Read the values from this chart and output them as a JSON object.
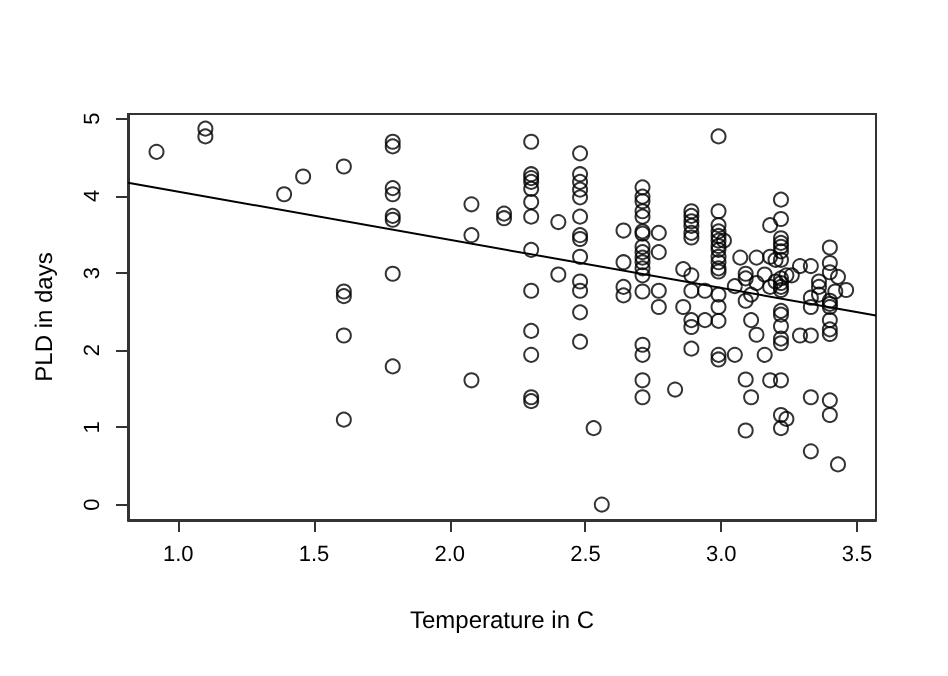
{
  "chart_data": {
    "type": "scatter",
    "xlabel": "Temperature in C",
    "ylabel": "PLD in days",
    "xlim": [
      0.815,
      3.57
    ],
    "ylim": [
      -0.2,
      5.06
    ],
    "xticks": [
      {
        "value": 1,
        "label": "1.0"
      },
      {
        "value": 1.5,
        "label": "1.5"
      },
      {
        "value": 2,
        "label": "2.0"
      },
      {
        "value": 2.5,
        "label": "2.5"
      },
      {
        "value": 3,
        "label": "3.0"
      },
      {
        "value": 3.5,
        "label": "3.5"
      }
    ],
    "yticks": [
      0,
      1,
      2,
      3,
      4,
      5
    ],
    "grid": false,
    "series": [
      {
        "color": "#000000",
        "marker": "circle",
        "x": [
          0.92,
          1.1,
          1.1,
          1.39,
          1.46,
          1.61,
          1.61,
          1.61,
          1.61,
          1.61,
          1.79,
          1.79,
          1.79,
          1.79,
          1.79,
          1.79,
          1.79,
          1.79,
          2.08,
          2.08,
          2.08,
          2.2,
          2.2,
          2.3,
          2.3,
          2.3,
          2.3,
          2.3,
          2.3,
          2.3,
          2.3,
          2.3,
          2.3,
          2.3,
          2.3,
          2.3,
          2.4,
          2.4,
          2.48,
          2.48,
          2.48,
          2.48,
          2.48,
          2.48,
          2.48,
          2.48,
          2.48,
          2.48,
          2.48,
          2.48,
          2.48,
          2.53,
          2.56,
          2.64,
          2.64,
          2.64,
          2.64,
          2.71,
          2.71,
          2.71,
          2.71,
          2.71,
          2.71,
          2.71,
          2.71,
          2.71,
          2.71,
          2.71,
          2.71,
          2.71,
          2.71,
          2.71,
          2.71,
          2.71,
          2.71,
          2.77,
          2.77,
          2.77,
          2.77,
          2.83,
          2.86,
          2.86,
          2.89,
          2.89,
          2.89,
          2.89,
          2.89,
          2.89,
          2.89,
          2.89,
          2.89,
          2.89,
          2.89,
          2.94,
          2.94,
          2.99,
          2.99,
          2.99,
          2.99,
          2.99,
          2.99,
          2.99,
          2.99,
          2.99,
          2.99,
          2.99,
          2.99,
          2.99,
          2.99,
          2.99,
          2.99,
          2.99,
          3.01,
          3.05,
          3.05,
          3.07,
          3.09,
          3.09,
          3.09,
          3.09,
          3.09,
          3.11,
          3.11,
          3.11,
          3.13,
          3.13,
          3.13,
          3.16,
          3.16,
          3.18,
          3.18,
          3.18,
          3.18,
          3.2,
          3.2,
          3.22,
          3.22,
          3.22,
          3.22,
          3.22,
          3.22,
          3.22,
          3.22,
          3.22,
          3.22,
          3.22,
          3.22,
          3.22,
          3.22,
          3.22,
          3.22,
          3.22,
          3.22,
          3.22,
          3.24,
          3.24,
          3.26,
          3.29,
          3.29,
          3.33,
          3.33,
          3.33,
          3.33,
          3.33,
          3.33,
          3.36,
          3.36,
          3.36,
          3.4,
          3.4,
          3.4,
          3.4,
          3.4,
          3.4,
          3.4,
          3.4,
          3.4,
          3.4,
          3.4,
          3.42,
          3.43,
          3.43,
          3.46
        ],
        "values": [
          4.57,
          4.87,
          4.77,
          4.02,
          4.25,
          4.38,
          2.76,
          2.7,
          2.19,
          1.1,
          4.7,
          4.64,
          4.1,
          4.02,
          3.74,
          3.69,
          2.99,
          1.79,
          3.89,
          3.49,
          1.61,
          3.77,
          3.71,
          4.7,
          4.28,
          4.23,
          4.18,
          4.09,
          3.92,
          3.73,
          3.3,
          2.77,
          2.25,
          1.94,
          1.39,
          1.34,
          3.66,
          2.98,
          4.55,
          4.28,
          4.18,
          4.08,
          3.98,
          3.73,
          3.49,
          3.44,
          3.21,
          2.89,
          2.77,
          2.49,
          2.11,
          0.99,
          0.0,
          3.55,
          3.14,
          2.82,
          2.71,
          4.11,
          3.99,
          3.93,
          3.8,
          3.73,
          3.54,
          3.51,
          3.34,
          3.27,
          3.2,
          3.14,
          3.06,
          2.97,
          2.76,
          2.07,
          1.94,
          1.61,
          1.39,
          3.52,
          3.27,
          2.77,
          2.56,
          1.49,
          3.05,
          2.56,
          3.8,
          3.74,
          3.67,
          3.61,
          3.52,
          3.46,
          2.97,
          2.77,
          2.39,
          2.3,
          2.02,
          2.77,
          2.39,
          4.77,
          3.8,
          3.62,
          3.54,
          3.48,
          3.42,
          3.35,
          3.3,
          3.21,
          3.14,
          3.06,
          3.02,
          2.72,
          2.56,
          2.38,
          1.94,
          1.88,
          3.42,
          2.83,
          1.94,
          3.2,
          2.99,
          2.93,
          2.64,
          1.62,
          0.96,
          2.72,
          2.39,
          1.39,
          3.2,
          2.87,
          2.2,
          2.98,
          1.94,
          3.62,
          3.21,
          2.82,
          1.61,
          3.17,
          2.89,
          3.95,
          3.7,
          3.45,
          3.39,
          3.34,
          3.28,
          3.17,
          2.93,
          2.87,
          2.82,
          2.78,
          2.51,
          2.46,
          2.31,
          2.15,
          2.09,
          1.61,
          1.16,
          0.99,
          2.97,
          1.11,
          2.97,
          3.09,
          2.19,
          3.09,
          2.68,
          2.56,
          2.19,
          1.39,
          0.69,
          2.89,
          2.82,
          2.72,
          3.33,
          3.13,
          3.01,
          2.64,
          2.6,
          2.56,
          2.39,
          2.27,
          2.21,
          1.35,
          1.16,
          2.76,
          2.95,
          0.52,
          2.78
        ]
      },
      {
        "type": "line",
        "color": "#000000",
        "marker": "none",
        "x": [
          0.815,
          3.57
        ],
        "values": [
          4.17,
          2.45
        ]
      }
    ]
  }
}
